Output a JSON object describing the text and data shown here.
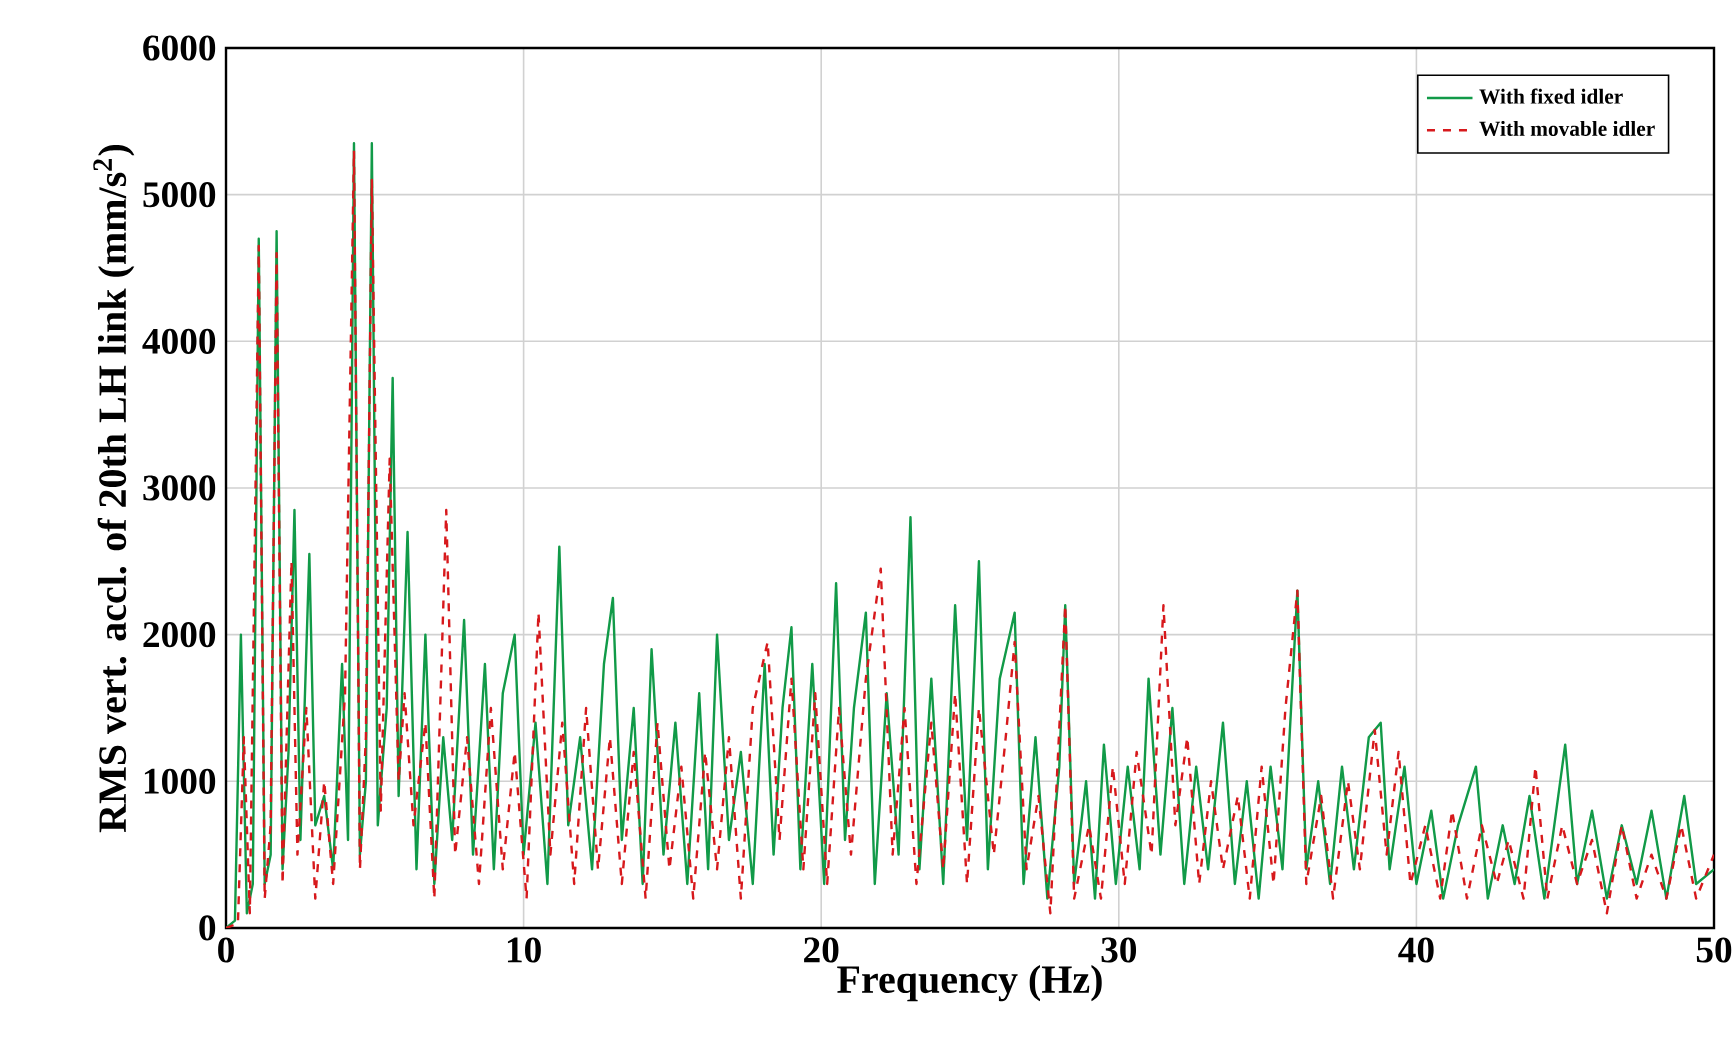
{
  "chart_data": {
    "type": "line",
    "xlabel": "Frequency (Hz)",
    "ylabel": "RMS vert. accl. of 20th LH link (mm/s$^{2}$)",
    "xlim": [
      0,
      50
    ],
    "ylim": [
      0,
      6000
    ],
    "xticks": [
      0,
      10,
      20,
      30,
      40,
      50
    ],
    "yticks": [
      0,
      1000,
      2000,
      3000,
      4000,
      5000,
      6000
    ],
    "grid": true,
    "legend": "top right",
    "marker": "none",
    "series": [
      {
        "name": "With fixed idler",
        "color": "#119a48",
        "line_style": "solid",
        "x": [
          0,
          0.3,
          0.5,
          0.7,
          0.9,
          1.1,
          1.3,
          1.5,
          1.7,
          1.9,
          2.1,
          2.3,
          2.5,
          2.8,
          3.0,
          3.3,
          3.6,
          3.9,
          4.1,
          4.3,
          4.5,
          4.7,
          4.9,
          5.1,
          5.4,
          5.6,
          5.8,
          6.1,
          6.4,
          6.7,
          7.0,
          7.3,
          7.6,
          8.0,
          8.3,
          8.7,
          9.0,
          9.3,
          9.7,
          10.0,
          10.4,
          10.8,
          11.2,
          11.5,
          11.9,
          12.3,
          12.7,
          13.0,
          13.3,
          13.7,
          14.0,
          14.3,
          14.7,
          15.1,
          15.5,
          15.9,
          16.2,
          16.5,
          16.9,
          17.3,
          17.7,
          18.1,
          18.4,
          18.7,
          19.0,
          19.3,
          19.7,
          20.1,
          20.5,
          20.8,
          21.1,
          21.5,
          21.8,
          22.2,
          22.6,
          23.0,
          23.3,
          23.7,
          24.1,
          24.5,
          24.9,
          25.3,
          25.6,
          26.0,
          26.5,
          26.8,
          27.2,
          27.6,
          28.0,
          28.2,
          28.5,
          28.9,
          29.2,
          29.5,
          29.9,
          30.3,
          30.7,
          31.0,
          31.4,
          31.8,
          32.2,
          32.6,
          33.0,
          33.5,
          33.9,
          34.3,
          34.7,
          35.1,
          35.5,
          36.0,
          36.3,
          36.7,
          37.1,
          37.5,
          37.9,
          38.4,
          38.8,
          39.1,
          39.6,
          40.0,
          40.5,
          40.9,
          41.4,
          42.0,
          42.4,
          42.9,
          43.3,
          43.8,
          44.3,
          45.0,
          45.4,
          45.9,
          46.4,
          46.9,
          47.4,
          47.9,
          48.4,
          49.0,
          49.4,
          50.0
        ],
        "values": [
          0,
          50,
          2000,
          100,
          300,
          4700,
          300,
          500,
          4750,
          400,
          1200,
          2850,
          600,
          2550,
          700,
          900,
          400,
          1800,
          600,
          5350,
          500,
          1000,
          5350,
          700,
          1500,
          3750,
          900,
          2700,
          400,
          2000,
          300,
          1300,
          600,
          2100,
          500,
          1800,
          400,
          1600,
          2000,
          500,
          1400,
          300,
          2600,
          700,
          1300,
          400,
          1800,
          2250,
          600,
          1500,
          300,
          1900,
          500,
          1400,
          300,
          1600,
          400,
          2000,
          600,
          1200,
          300,
          1800,
          500,
          1500,
          2050,
          400,
          1800,
          300,
          2350,
          600,
          1500,
          2150,
          300,
          1600,
          500,
          2800,
          400,
          1700,
          300,
          2200,
          600,
          2500,
          400,
          1700,
          2150,
          300,
          1300,
          200,
          1100,
          2200,
          300,
          1000,
          200,
          1250,
          300,
          1100,
          400,
          1700,
          500,
          1500,
          300,
          1100,
          400,
          1400,
          300,
          1000,
          200,
          1100,
          400,
          2300,
          400,
          1000,
          300,
          1100,
          400,
          1300,
          1400,
          400,
          1100,
          300,
          800,
          200,
          700,
          1100,
          200,
          700,
          300,
          900,
          200,
          1250,
          300,
          800,
          200,
          700,
          300,
          800,
          200,
          900,
          300,
          400
        ]
      },
      {
        "name": "With movable idler",
        "color": "#d7191c",
        "line_style": "dashed",
        "x": [
          0,
          0.4,
          0.6,
          0.8,
          1.1,
          1.3,
          1.5,
          1.7,
          1.9,
          2.2,
          2.4,
          2.7,
          3.0,
          3.3,
          3.6,
          4.0,
          4.3,
          4.5,
          4.7,
          4.9,
          5.2,
          5.5,
          5.8,
          6.0,
          6.3,
          6.7,
          7.0,
          7.4,
          7.7,
          8.1,
          8.5,
          8.9,
          9.3,
          9.7,
          10.1,
          10.5,
          10.9,
          11.3,
          11.7,
          12.1,
          12.5,
          12.9,
          13.3,
          13.7,
          14.1,
          14.5,
          14.9,
          15.3,
          15.7,
          16.1,
          16.5,
          16.9,
          17.3,
          17.7,
          18.2,
          18.6,
          19.0,
          19.4,
          19.8,
          20.2,
          20.6,
          21.0,
          21.5,
          22.0,
          22.4,
          22.8,
          23.2,
          23.7,
          24.1,
          24.5,
          24.9,
          25.3,
          25.8,
          26.2,
          26.5,
          26.9,
          27.3,
          27.7,
          28.2,
          28.5,
          29.0,
          29.4,
          29.8,
          30.2,
          30.6,
          31.1,
          31.5,
          31.9,
          32.3,
          32.7,
          33.1,
          33.5,
          34.0,
          34.4,
          34.8,
          35.2,
          35.6,
          36.0,
          36.3,
          36.8,
          37.2,
          37.7,
          38.1,
          38.6,
          39.0,
          39.4,
          39.8,
          40.3,
          40.8,
          41.2,
          41.7,
          42.2,
          42.7,
          43.1,
          43.6,
          44.0,
          44.4,
          44.9,
          45.4,
          45.9,
          46.4,
          46.9,
          47.4,
          47.9,
          48.4,
          48.9,
          49.4,
          50.0
        ],
        "values": [
          0,
          30,
          1300,
          100,
          4650,
          200,
          700,
          4600,
          300,
          2500,
          500,
          1500,
          200,
          1000,
          300,
          1600,
          5300,
          400,
          1300,
          5100,
          800,
          3200,
          1000,
          1600,
          700,
          1400,
          200,
          2850,
          500,
          1300,
          300,
          1500,
          400,
          1200,
          200,
          2150,
          500,
          1400,
          300,
          1500,
          400,
          1300,
          300,
          1200,
          200,
          1400,
          400,
          1100,
          200,
          1200,
          400,
          1300,
          200,
          1500,
          1950,
          600,
          1700,
          400,
          1600,
          300,
          1500,
          500,
          1700,
          2450,
          500,
          1500,
          300,
          1400,
          400,
          1600,
          300,
          1500,
          500,
          1300,
          1950,
          400,
          900,
          100,
          2200,
          200,
          700,
          200,
          1100,
          300,
          1200,
          500,
          2200,
          700,
          1300,
          300,
          1000,
          400,
          900,
          200,
          1100,
          300,
          1500,
          2300,
          300,
          900,
          200,
          1000,
          400,
          1350,
          500,
          1200,
          300,
          700,
          200,
          800,
          200,
          700,
          300,
          600,
          200,
          1100,
          200,
          700,
          300,
          600,
          100,
          700,
          200,
          500,
          200,
          700,
          200,
          500
        ]
      }
    ]
  }
}
